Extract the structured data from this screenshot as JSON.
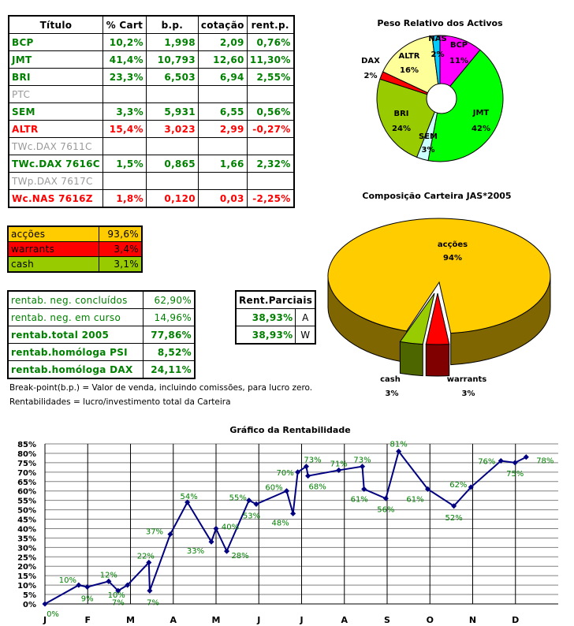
{
  "holdings_table": {
    "headers": [
      "Título",
      "% Cart",
      "b.p.",
      "cotação",
      "rent.p."
    ],
    "rows": [
      {
        "name": "BCP",
        "cart": "10,2%",
        "bp": "1,998",
        "cot": "2,09",
        "rent": "0,76%",
        "status": "green"
      },
      {
        "name": "JMT",
        "cart": "41,4%",
        "bp": "10,793",
        "cot": "12,60",
        "rent": "11,30%",
        "status": "green"
      },
      {
        "name": "BRI",
        "cart": "23,3%",
        "bp": "6,503",
        "cot": "6,94",
        "rent": "2,55%",
        "status": "green"
      },
      {
        "name": "PTC",
        "cart": "",
        "bp": "",
        "cot": "",
        "rent": "",
        "status": "grey"
      },
      {
        "name": "SEM",
        "cart": "3,3%",
        "bp": "5,931",
        "cot": "6,55",
        "rent": "0,56%",
        "status": "green"
      },
      {
        "name": "ALTR",
        "cart": "15,4%",
        "bp": "3,023",
        "cot": "2,99",
        "rent": "-0,27%",
        "status": "red"
      },
      {
        "name": "TWc.DAX 7611C",
        "cart": "",
        "bp": "",
        "cot": "",
        "rent": "",
        "status": "grey"
      },
      {
        "name": "TWc.DAX 7616C",
        "cart": "1,5%",
        "bp": "0,865",
        "cot": "1,66",
        "rent": "2,32%",
        "status": "green"
      },
      {
        "name": "TWp.DAX 7617C",
        "cart": "",
        "bp": "",
        "cot": "",
        "rent": "",
        "status": "grey"
      },
      {
        "name": "Wc.NAS 7616Z",
        "cart": "1,8%",
        "bp": "0,120",
        "cot": "0,03",
        "rent": "-2,25%",
        "status": "red"
      }
    ]
  },
  "allocation": [
    {
      "label": "acções",
      "value": "93,6%",
      "color": "#ffcc00"
    },
    {
      "label": "warrants",
      "value": "3,4%",
      "color": "#ff0000"
    },
    {
      "label": "cash",
      "value": "3,1%",
      "color": "#99cc00"
    }
  ],
  "returns": [
    {
      "label": "rentab. neg. concluídos",
      "value": "62,90%",
      "bold": false
    },
    {
      "label": "rentab. neg. em curso",
      "value": "14,96%",
      "bold": false
    },
    {
      "label": "rentab.total 2005",
      "value": "77,86%",
      "bold": true
    },
    {
      "label": "rentab.homóloga PSI",
      "value": "8,52%",
      "bold": true
    },
    {
      "label": "rentab.homóloga DAX",
      "value": "24,11%",
      "bold": true
    }
  ],
  "partial": {
    "header": "Rent.Parciais",
    "rows": [
      {
        "value": "38,93%",
        "key": "A"
      },
      {
        "value": "38,93%",
        "key": "W"
      }
    ]
  },
  "notes": [
    "Break-point(b.p.) = Valor de venda, incluindo comissões, para lucro zero.",
    "Rentabilidades = lucro/investimento total da Carteira"
  ],
  "chart_data": [
    {
      "type": "pie",
      "variant": "donut",
      "title": "Peso Relativo dos Activos",
      "slices": [
        {
          "label": "BCP",
          "value": 11,
          "text": "11%",
          "color": "#ff00ff"
        },
        {
          "label": "JMT",
          "value": 42,
          "text": "42%",
          "color": "#00ff00"
        },
        {
          "label": "SEM",
          "value": 3,
          "text": "3%",
          "color": "#ccffff"
        },
        {
          "label": "BRI",
          "value": 24,
          "text": "24%",
          "color": "#99cc00"
        },
        {
          "label": "DAX",
          "value": 2,
          "text": "2%",
          "color": "#ff0000"
        },
        {
          "label": "ALTR",
          "value": 16,
          "text": "16%",
          "color": "#ffff99"
        },
        {
          "label": "NAS",
          "value": 2,
          "text": "2%",
          "color": "#00ccff"
        }
      ]
    },
    {
      "type": "pie",
      "variant": "3d-exploded",
      "title": "Composição Carteira JAS*2005",
      "slices": [
        {
          "label": "acções",
          "value": 94,
          "text": "94%",
          "color": "#ffcc00"
        },
        {
          "label": "warrants",
          "value": 3,
          "text": "3%",
          "color": "#ff0000"
        },
        {
          "label": "cash",
          "value": 3,
          "text": "3%",
          "color": "#99cc00"
        }
      ]
    },
    {
      "type": "line",
      "title": "Gráfico da Rentabilidade",
      "x_ticks": [
        "J",
        "F",
        "M",
        "A",
        "M",
        "J",
        "J",
        "A",
        "S",
        "O",
        "N",
        "D"
      ],
      "xlim": [
        0,
        12
      ],
      "ylim": [
        0,
        85
      ],
      "y_step": 5,
      "y_unit": "%",
      "grid": true,
      "line_color": "#000080",
      "label_color": "#008000",
      "points": [
        [
          0,
          0
        ],
        [
          0.79,
          10
        ],
        [
          0.99,
          9
        ],
        [
          1.49,
          12
        ],
        [
          1.71,
          7
        ],
        [
          1.93,
          10
        ],
        [
          2.43,
          22
        ],
        [
          2.45,
          7
        ],
        [
          2.93,
          37
        ],
        [
          3.33,
          54
        ],
        [
          3.89,
          33
        ],
        [
          4.0,
          40
        ],
        [
          4.25,
          28
        ],
        [
          4.77,
          55
        ],
        [
          4.94,
          53
        ],
        [
          5.65,
          60
        ],
        [
          5.8,
          48
        ],
        [
          5.91,
          70
        ],
        [
          6.11,
          73
        ],
        [
          6.15,
          68
        ],
        [
          6.87,
          71
        ],
        [
          7.42,
          73
        ],
        [
          7.46,
          61
        ],
        [
          7.97,
          56
        ],
        [
          8.27,
          81
        ],
        [
          8.95,
          61
        ],
        [
          9.56,
          52
        ],
        [
          9.96,
          62
        ],
        [
          10.66,
          76
        ],
        [
          10.99,
          75
        ],
        [
          11.25,
          78
        ]
      ]
    }
  ]
}
